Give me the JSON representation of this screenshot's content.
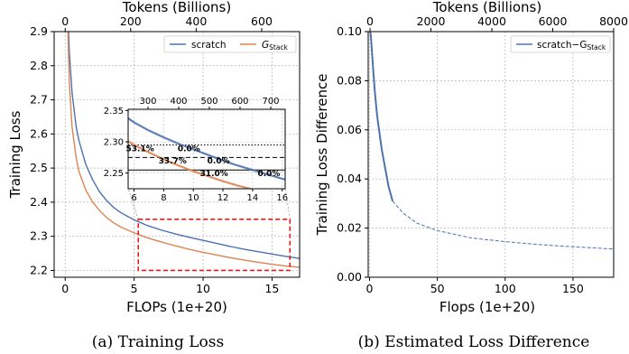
{
  "chart_data": [
    {
      "type": "line",
      "caption": "(a) Training Loss",
      "xlabel": "FLOPs (1e+20)",
      "ylabel": "Training Loss",
      "top_xlabel": "Tokens (Billions)",
      "xlim": [
        -0.8,
        17
      ],
      "ylim": [
        2.18,
        2.9
      ],
      "xticks": [
        "0",
        "5",
        "10",
        "15"
      ],
      "yticks": [
        "2.2",
        "2.3",
        "2.4",
        "2.5",
        "2.6",
        "2.7",
        "2.8",
        "2.9"
      ],
      "top_xticks": [
        "0",
        "200",
        "400",
        "600"
      ],
      "grid": true,
      "legend_position": "top-right",
      "series": [
        {
          "name": "scratch",
          "color": "#4c72b0",
          "x": [
            0.1,
            0.2,
            0.3,
            0.5,
            0.8,
            1.0,
            1.5,
            2.0,
            2.5,
            3.0,
            3.5,
            4.0,
            5.0,
            6.0,
            7.0,
            8.0,
            9.0,
            10.0,
            11.0,
            12.0,
            13.0,
            14.0,
            15.0,
            16.0,
            17.0
          ],
          "y": [
            3.3,
            2.95,
            2.84,
            2.72,
            2.62,
            2.58,
            2.51,
            2.465,
            2.43,
            2.405,
            2.385,
            2.37,
            2.348,
            2.331,
            2.318,
            2.307,
            2.297,
            2.288,
            2.279,
            2.27,
            2.262,
            2.255,
            2.248,
            2.241,
            2.235
          ]
        },
        {
          "name": "G_stack",
          "color": "#dd8452",
          "x": [
            0.1,
            0.2,
            0.3,
            0.5,
            0.8,
            1.0,
            1.5,
            2.0,
            2.5,
            3.0,
            3.5,
            4.0,
            5.0,
            6.0,
            7.0,
            8.0,
            9.0,
            10.0,
            11.0,
            12.0,
            13.0,
            14.0,
            15.0,
            16.0,
            17.0
          ],
          "y": [
            3.3,
            2.9,
            2.75,
            2.62,
            2.53,
            2.49,
            2.435,
            2.4,
            2.375,
            2.355,
            2.34,
            2.328,
            2.31,
            2.295,
            2.283,
            2.272,
            2.262,
            2.253,
            2.245,
            2.237,
            2.23,
            2.224,
            2.218,
            2.213,
            2.209
          ]
        }
      ],
      "legend": {
        "scratch": "scratch",
        "gstack_base": "G",
        "gstack_sub": "Stack"
      },
      "highlight_box": {
        "x": [
          5.3,
          16.3
        ],
        "y": [
          2.2,
          2.35
        ],
        "color": "#e31a1c"
      },
      "inset": {
        "xlim": [
          5.6,
          16.2
        ],
        "ylim": [
          2.225,
          2.352
        ],
        "xticks": [
          "6",
          "8",
          "10",
          "12",
          "14",
          "16"
        ],
        "yticks": [
          "2.25",
          "2.30",
          "2.35"
        ],
        "top_xticks": [
          "300",
          "400",
          "500",
          "600",
          "700"
        ],
        "hlines": [
          {
            "y": 2.295,
            "style": "dotted"
          },
          {
            "y": 2.275,
            "style": "dashed"
          },
          {
            "y": 2.255,
            "style": "solid"
          }
        ],
        "annotations": [
          {
            "text": "53.1%",
            "x": 6.4,
            "y": 2.291
          },
          {
            "text": "0.0%",
            "x": 9.7,
            "y": 2.291
          },
          {
            "text": "33.7%",
            "x": 8.6,
            "y": 2.271
          },
          {
            "text": "0.0%",
            "x": 11.7,
            "y": 2.271
          },
          {
            "text": "31.0%",
            "x": 11.4,
            "y": 2.251
          },
          {
            "text": "0.0%",
            "x": 15.1,
            "y": 2.251
          }
        ]
      }
    },
    {
      "type": "line",
      "caption": "(b) Estimated Loss Difference",
      "xlabel": "Flops (1e+20)",
      "ylabel": "Training Loss Difference",
      "top_xlabel": "Tokens (Billions)",
      "xlim": [
        -1,
        180
      ],
      "ylim": [
        0.0,
        0.1
      ],
      "xticks": [
        "0",
        "50",
        "100",
        "150"
      ],
      "yticks": [
        "0.00",
        "0.02",
        "0.04",
        "0.06",
        "0.08",
        "0.10"
      ],
      "top_xticks": [
        "0",
        "2000",
        "4000",
        "6000",
        "8000"
      ],
      "grid": true,
      "legend_position": "top-right",
      "legend": {
        "base": "scratch−G",
        "sub": "Stack"
      },
      "series": [
        {
          "name": "scratch−G_Stack",
          "color": "#4c72b0",
          "observed_x": [
            0.5,
            1,
            2,
            3,
            4,
            5,
            6,
            7,
            8,
            9,
            10,
            11,
            12,
            13,
            14,
            15,
            16,
            17
          ],
          "observed_y": [
            0.1,
            0.098,
            0.09,
            0.082,
            0.075,
            0.069,
            0.064,
            0.06,
            0.056,
            0.052,
            0.049,
            0.046,
            0.043,
            0.04,
            0.037,
            0.035,
            0.033,
            0.031
          ],
          "estimated_x": [
            17,
            25,
            35,
            50,
            75,
            100,
            125,
            150,
            180
          ],
          "estimated_y": [
            0.031,
            0.026,
            0.022,
            0.019,
            0.016,
            0.0145,
            0.0133,
            0.0124,
            0.0115
          ]
        }
      ]
    }
  ]
}
